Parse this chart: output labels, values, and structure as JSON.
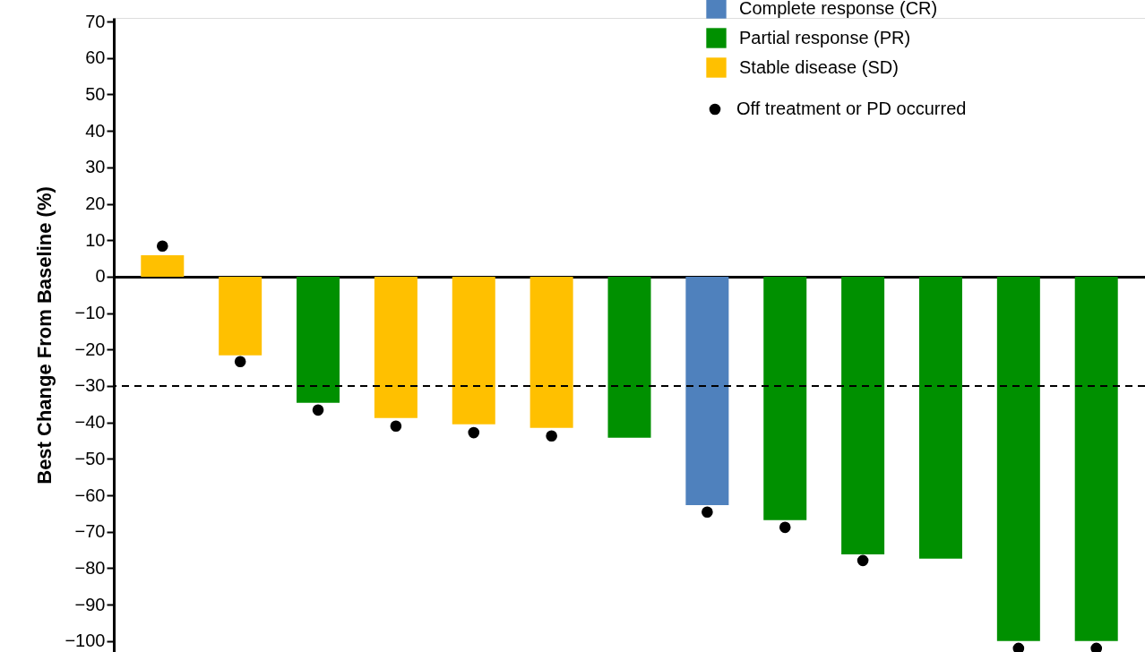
{
  "chart_data": {
    "type": "bar",
    "ylabel": "Best Change From Baseline (%)",
    "categories": [
      null,
      null,
      null,
      null,
      null,
      null,
      null,
      null,
      null,
      null,
      null,
      null,
      null
    ],
    "series": [
      {
        "name": "Complete response (CR)",
        "color": "#4f81bd",
        "values": [
          null,
          null,
          null,
          null,
          null,
          null,
          null,
          -62.7,
          null,
          null,
          null,
          null,
          null
        ]
      },
      {
        "name": "Partial response (PR)",
        "color": "#009000",
        "values": [
          null,
          null,
          -34.6,
          null,
          null,
          null,
          -44.2,
          null,
          -66.8,
          -76.2,
          -77.4,
          -100,
          -100
        ]
      },
      {
        "name": "Stable disease (SD)",
        "color": "#ffc000",
        "values": [
          5.9,
          -21.6,
          null,
          -38.8,
          -40.5,
          -41.5,
          null,
          null,
          null,
          null,
          null,
          null,
          null
        ]
      },
      {
        "name": "Off treatment or PD occurred",
        "type": "scatter",
        "marker": "circle",
        "color": "#000000",
        "values": [
          8.4,
          -23.3,
          -36.6,
          -41,
          -42.8,
          -43.7,
          null,
          -64.6,
          -68.8,
          -77.9,
          null,
          -102,
          -102
        ]
      }
    ],
    "ylim": [
      -103,
      71
    ],
    "yticks": [
      70,
      60,
      50,
      40,
      30,
      20,
      10,
      0,
      -10,
      -20,
      -30,
      -40,
      -50,
      -60,
      -70,
      -80,
      -90,
      -100
    ],
    "ref_lines": [
      {
        "axis": "y",
        "value": -30,
        "line_style": "dashed",
        "color": "#000000"
      }
    ],
    "tick_labels": "y",
    "grid": false,
    "legend": "top right"
  }
}
